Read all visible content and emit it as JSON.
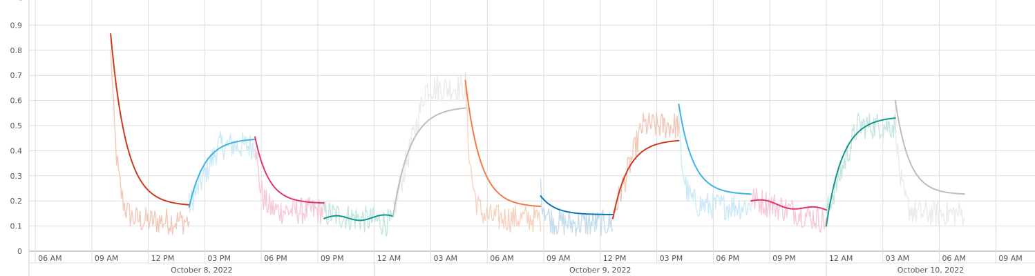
{
  "chart_data": {
    "type": "line",
    "title": "",
    "xlabel": "",
    "ylabel": "",
    "ylim": [
      0,
      1
    ],
    "y_ticks": [
      "0",
      "0.1",
      "0.2",
      "0.3",
      "0.4",
      "0.5",
      "0.6",
      "0.7",
      "0.8",
      "0.9"
    ],
    "y_tick_values": [
      0,
      0.1,
      0.2,
      0.3,
      0.4,
      0.5,
      0.6,
      0.7,
      0.8,
      0.9
    ],
    "x_range": [
      "2022-10-08 05:40",
      "2022-10-10 11:05"
    ],
    "x_ticks": [
      {
        "time": "2022-10-08 06:00",
        "label": "06 AM"
      },
      {
        "time": "2022-10-08 09:00",
        "label": "09 AM"
      },
      {
        "time": "2022-10-08 12:00",
        "label": "12 PM"
      },
      {
        "time": "2022-10-08 15:00",
        "label": "03 PM"
      },
      {
        "time": "2022-10-08 18:00",
        "label": "06 PM"
      },
      {
        "time": "2022-10-08 21:00",
        "label": "09 PM"
      },
      {
        "time": "2022-10-09 00:00",
        "label": "12 AM"
      },
      {
        "time": "2022-10-09 03:00",
        "label": "03 AM"
      },
      {
        "time": "2022-10-09 06:00",
        "label": "06 AM"
      },
      {
        "time": "2022-10-09 09:00",
        "label": "09 AM"
      },
      {
        "time": "2022-10-09 12:00",
        "label": "12 PM"
      },
      {
        "time": "2022-10-09 15:00",
        "label": "03 PM"
      },
      {
        "time": "2022-10-09 18:00",
        "label": "06 PM"
      },
      {
        "time": "2022-10-09 21:00",
        "label": "09 PM"
      },
      {
        "time": "2022-10-10 00:00",
        "label": "12 AM"
      },
      {
        "time": "2022-10-10 03:00",
        "label": "03 AM"
      },
      {
        "time": "2022-10-10 06:00",
        "label": "06 AM"
      },
      {
        "time": "2022-10-10 09:00",
        "label": "09 AM"
      }
    ],
    "date_labels": [
      {
        "label": "October 8, 2022",
        "start": "2022-10-08 05:40",
        "end": "2022-10-09 00:00"
      },
      {
        "label": "October 9, 2022",
        "start": "2022-10-09 00:00",
        "end": "2022-10-10 00:00"
      },
      {
        "label": "October 10, 2022",
        "start": "2022-10-10 00:00",
        "end": "2022-10-10 11:05"
      }
    ],
    "grid": true,
    "legend": "none",
    "series": [
      {
        "color": "#cc3a1e",
        "raw_color": "#f0c8b8",
        "kind": "decay",
        "start": "2022-10-08 10:00",
        "end": "2022-10-08 14:10",
        "y0": 0.865,
        "y1": 0.18,
        "raw_start": 0.86,
        "raw_end": 0.12
      },
      {
        "color": "#3db2e2",
        "raw_color": "#cbe9f7",
        "kind": "rise",
        "start": "2022-10-08 14:10",
        "end": "2022-10-08 17:40",
        "y0": 0.175,
        "y1": 0.445,
        "raw_start": 0.18,
        "raw_end": 0.42
      },
      {
        "color": "#e0336b",
        "raw_color": "#f7c8d8",
        "kind": "decay",
        "start": "2022-10-08 17:40",
        "end": "2022-10-08 21:20",
        "y0": 0.455,
        "y1": 0.19,
        "raw_start": 0.45,
        "raw_end": 0.16
      },
      {
        "color": "#12958a",
        "raw_color": "#c3e6e0",
        "kind": "flat",
        "start": "2022-10-08 21:20",
        "end": "2022-10-09 01:00",
        "y0": 0.13,
        "y1": 0.135,
        "raw_start": 0.15,
        "raw_end": 0.11
      },
      {
        "color": "#bdbdbd",
        "raw_color": "#ebebeb",
        "kind": "rise",
        "start": "2022-10-09 01:00",
        "end": "2022-10-09 04:50",
        "y0": 0.14,
        "y1": 0.57,
        "raw_start": 0.15,
        "raw_end": 0.65
      },
      {
        "color": "#f47a45",
        "raw_color": "#f6d2c0",
        "kind": "decay",
        "start": "2022-10-09 04:50",
        "end": "2022-10-09 08:50",
        "y0": 0.68,
        "y1": 0.175,
        "raw_start": 0.68,
        "raw_end": 0.13
      },
      {
        "color": "#0b74b8",
        "raw_color": "#c4dced",
        "kind": "decay",
        "start": "2022-10-09 08:50",
        "end": "2022-10-09 12:40",
        "y0": 0.22,
        "y1": 0.145,
        "raw_start": 0.24,
        "raw_end": 0.11
      },
      {
        "color": "#cc3a1e",
        "raw_color": "#f0c8b8",
        "kind": "rise",
        "start": "2022-10-09 12:40",
        "end": "2022-10-09 16:10",
        "y0": 0.13,
        "y1": 0.44,
        "raw_start": 0.14,
        "raw_end": 0.5
      },
      {
        "color": "#3db2e2",
        "raw_color": "#cbe9f7",
        "kind": "decay",
        "start": "2022-10-09 16:10",
        "end": "2022-10-09 20:00",
        "y0": 0.585,
        "y1": 0.225,
        "raw_start": 0.5,
        "raw_end": 0.18
      },
      {
        "color": "#e0336b",
        "raw_color": "#f7c8d8",
        "kind": "flat",
        "start": "2022-10-09 20:00",
        "end": "2022-10-10 00:00",
        "y0": 0.2,
        "y1": 0.16,
        "raw_start": 0.21,
        "raw_end": 0.12
      },
      {
        "color": "#12958a",
        "raw_color": "#c3e6e0",
        "kind": "rise",
        "start": "2022-10-10 00:00",
        "end": "2022-10-10 03:40",
        "y0": 0.1,
        "y1": 0.53,
        "raw_start": 0.15,
        "raw_end": 0.5
      },
      {
        "color": "#bdbdbd",
        "raw_color": "#ebebeb",
        "kind": "decay",
        "start": "2022-10-10 03:40",
        "end": "2022-10-10 07:20",
        "y0": 0.6,
        "y1": 0.225,
        "raw_start": 0.55,
        "raw_end": 0.15
      }
    ]
  }
}
